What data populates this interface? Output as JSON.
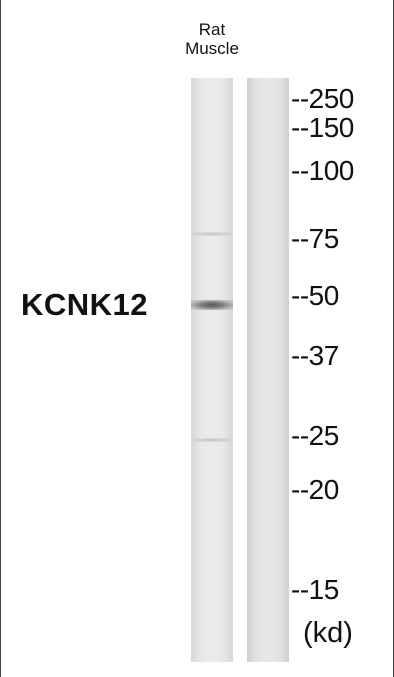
{
  "sample": {
    "line1": "Rat",
    "line2": "Muscle"
  },
  "protein": "KCNK12",
  "markers": [
    "--250",
    "--150",
    "--100",
    "--75",
    "--50",
    "--37",
    "--25",
    "--20",
    "--15"
  ],
  "unit": "(kd)",
  "colors": {
    "band": "#5a5a5a",
    "lane": "#e6e6e6",
    "text": "#111111"
  }
}
